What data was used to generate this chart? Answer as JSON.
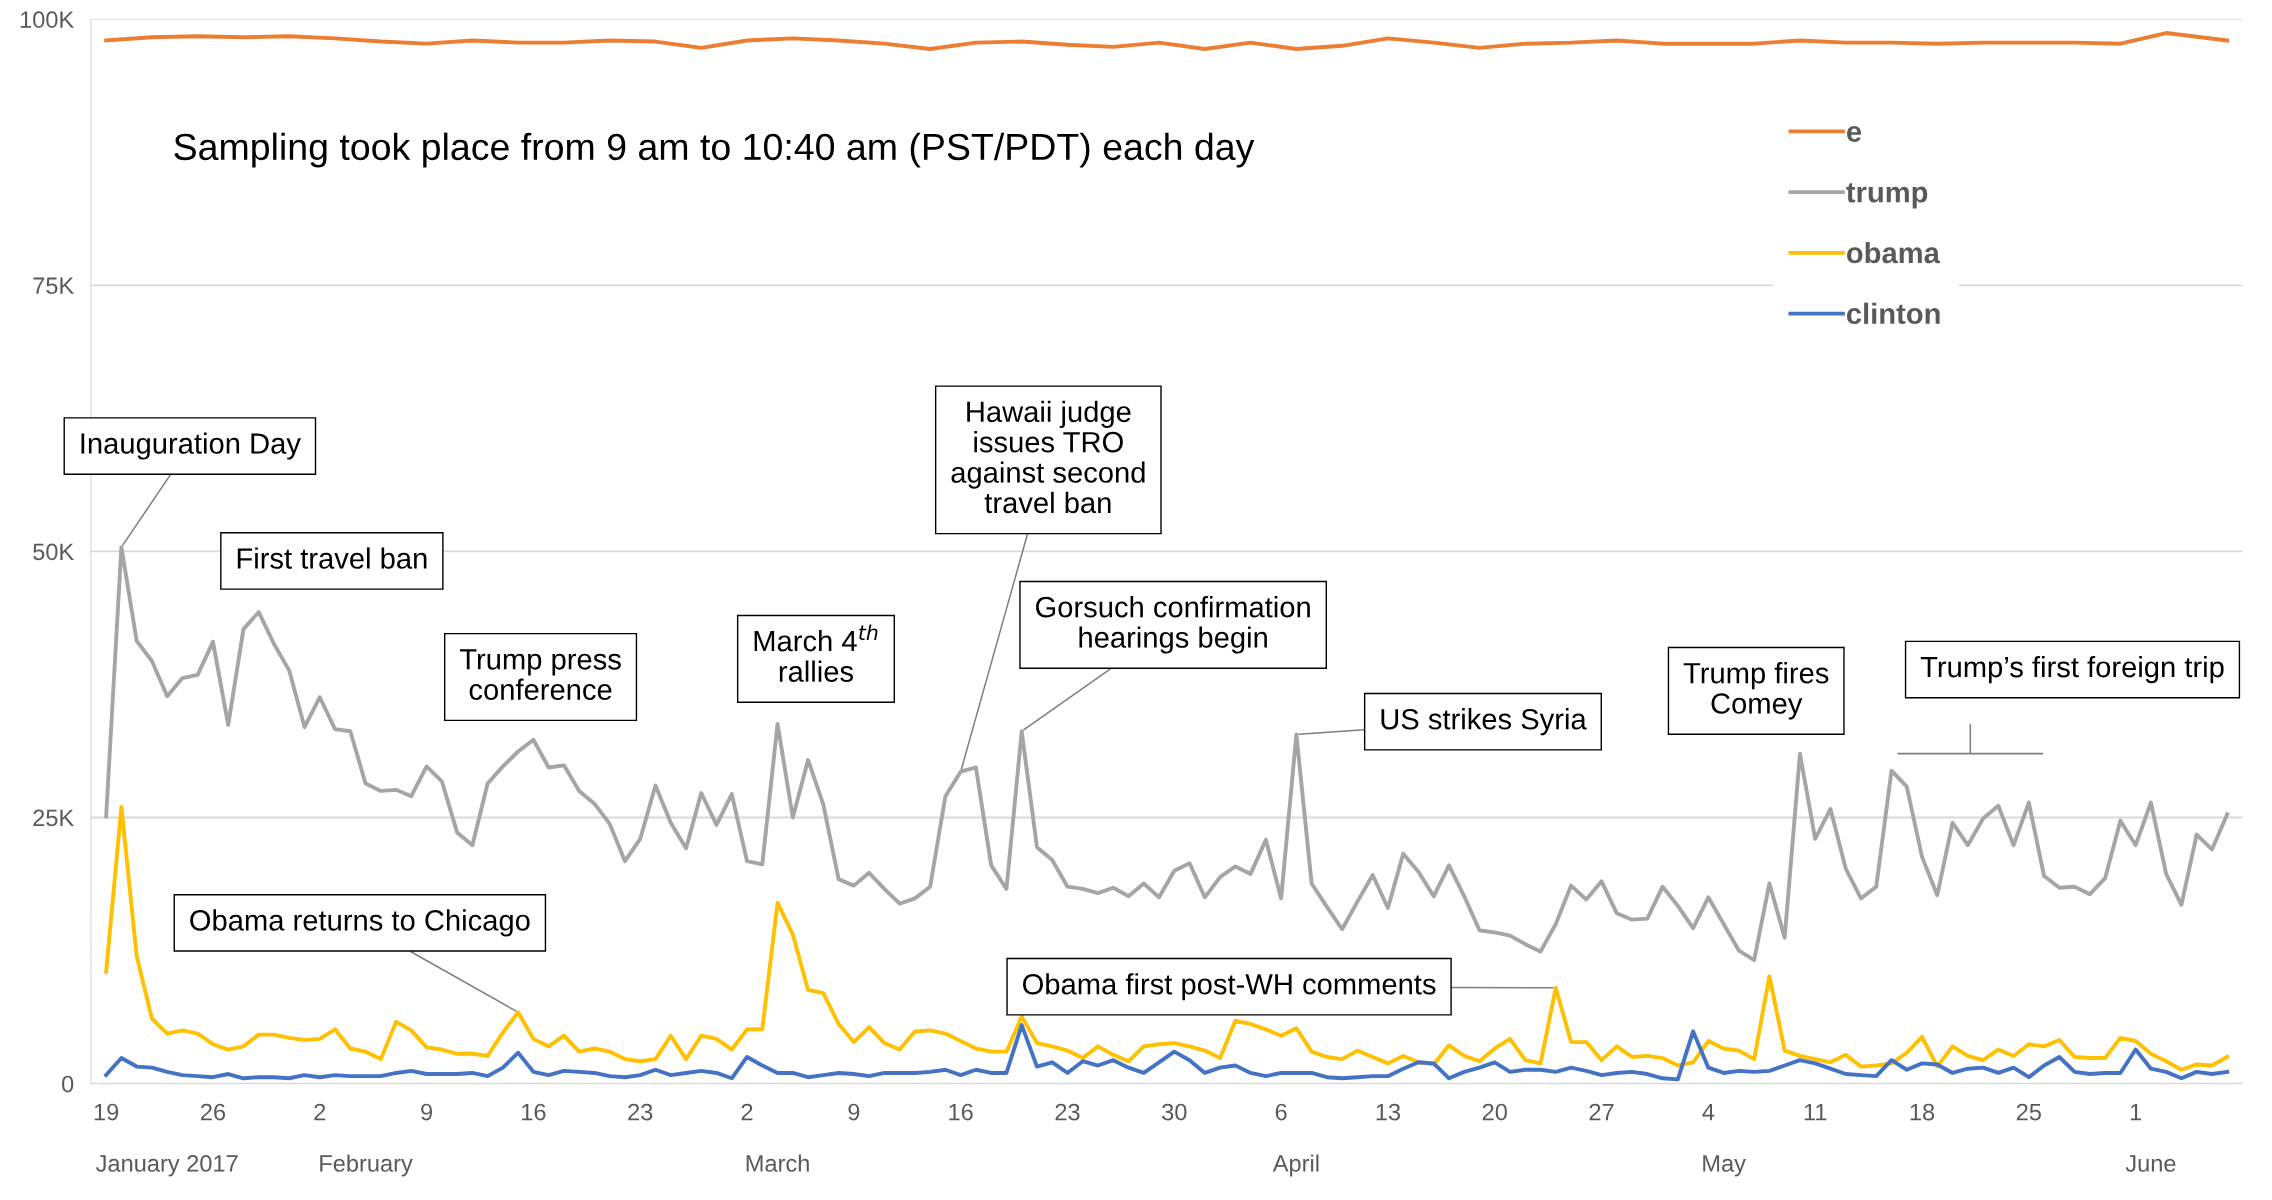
{
  "chart_data": {
    "type": "line",
    "title": "Sampling took place from 9 am to 10:40 am (PST/PDT) each day",
    "x": [
      "2017-01-19",
      "2017-01-20",
      "2017-01-21",
      "2017-01-22",
      "2017-01-23",
      "2017-01-24",
      "2017-01-25",
      "2017-01-26",
      "2017-01-27",
      "2017-01-28",
      "2017-01-29",
      "2017-01-30",
      "2017-01-31",
      "2017-02-01",
      "2017-02-02",
      "2017-02-03",
      "2017-02-04",
      "2017-02-05",
      "2017-02-06",
      "2017-02-07",
      "2017-02-08",
      "2017-02-09",
      "2017-02-10",
      "2017-02-11",
      "2017-02-12",
      "2017-02-13",
      "2017-02-14",
      "2017-02-15",
      "2017-02-16",
      "2017-02-17",
      "2017-02-18",
      "2017-02-19",
      "2017-02-20",
      "2017-02-21",
      "2017-02-22",
      "2017-02-23",
      "2017-02-24",
      "2017-02-25",
      "2017-02-26",
      "2017-02-27",
      "2017-02-28",
      "2017-03-01",
      "2017-03-02",
      "2017-03-03",
      "2017-03-04",
      "2017-03-05",
      "2017-03-06",
      "2017-03-07",
      "2017-03-08",
      "2017-03-09",
      "2017-03-10",
      "2017-03-11",
      "2017-03-12",
      "2017-03-13",
      "2017-03-14",
      "2017-03-15",
      "2017-03-16",
      "2017-03-17",
      "2017-03-18",
      "2017-03-19",
      "2017-03-20",
      "2017-03-21",
      "2017-03-22",
      "2017-03-23",
      "2017-03-24",
      "2017-03-25",
      "2017-03-26",
      "2017-03-27",
      "2017-03-28",
      "2017-03-29",
      "2017-03-30",
      "2017-03-31",
      "2017-04-01",
      "2017-04-02",
      "2017-04-03",
      "2017-04-04",
      "2017-04-05",
      "2017-04-06",
      "2017-04-07",
      "2017-04-08",
      "2017-04-09",
      "2017-04-10",
      "2017-04-11",
      "2017-04-12",
      "2017-04-13",
      "2017-04-14",
      "2017-04-15",
      "2017-04-16",
      "2017-04-17",
      "2017-04-18",
      "2017-04-19",
      "2017-04-20",
      "2017-04-21",
      "2017-04-22",
      "2017-04-23",
      "2017-04-24",
      "2017-04-25",
      "2017-04-26",
      "2017-04-27",
      "2017-04-28",
      "2017-04-29",
      "2017-04-30",
      "2017-05-01",
      "2017-05-02",
      "2017-05-03",
      "2017-05-04",
      "2017-05-05",
      "2017-05-06",
      "2017-05-07",
      "2017-05-08",
      "2017-05-09",
      "2017-05-10",
      "2017-05-11",
      "2017-05-12",
      "2017-05-13",
      "2017-05-14",
      "2017-05-15",
      "2017-05-16",
      "2017-05-17",
      "2017-05-18",
      "2017-05-19",
      "2017-05-20",
      "2017-05-21",
      "2017-05-22",
      "2017-05-23",
      "2017-05-24",
      "2017-05-25",
      "2017-05-26",
      "2017-05-27",
      "2017-05-28",
      "2017-05-29",
      "2017-05-30",
      "2017-05-31",
      "2017-06-01",
      "2017-06-02",
      "2017-06-03",
      "2017-06-04",
      "2017-06-05",
      "2017-06-06",
      "2017-06-07"
    ],
    "series": [
      {
        "name": "e",
        "color": "#ed7d31",
        "x": [
          "2017-01-19",
          "2017-01-22",
          "2017-01-25",
          "2017-01-28",
          "2017-01-31",
          "2017-02-03",
          "2017-02-06",
          "2017-02-09",
          "2017-02-12",
          "2017-02-15",
          "2017-02-18",
          "2017-02-21",
          "2017-02-24",
          "2017-02-27",
          "2017-03-02",
          "2017-03-05",
          "2017-03-08",
          "2017-03-11",
          "2017-03-14",
          "2017-03-17",
          "2017-03-20",
          "2017-03-23",
          "2017-03-26",
          "2017-03-29",
          "2017-04-01",
          "2017-04-04",
          "2017-04-07",
          "2017-04-10",
          "2017-04-13",
          "2017-04-16",
          "2017-04-19",
          "2017-04-22",
          "2017-04-25",
          "2017-04-28",
          "2017-05-01",
          "2017-05-04",
          "2017-05-07",
          "2017-05-10",
          "2017-05-13",
          "2017-05-16",
          "2017-05-19",
          "2017-05-22",
          "2017-05-25",
          "2017-05-28",
          "2017-05-31",
          "2017-06-03",
          "2017-06-07"
        ],
        "values": [
          98.0,
          98.3,
          98.4,
          98.3,
          98.4,
          98.2,
          97.9,
          97.7,
          98.0,
          97.8,
          97.8,
          98.0,
          97.9,
          97.3,
          98.0,
          98.2,
          98.0,
          97.7,
          97.2,
          97.8,
          97.9,
          97.6,
          97.4,
          97.8,
          97.2,
          97.8,
          97.2,
          97.5,
          98.2,
          97.8,
          97.3,
          97.7,
          97.8,
          98.0,
          97.7,
          97.7,
          97.7,
          98.0,
          97.8,
          97.8,
          97.7,
          97.8,
          97.8,
          97.8,
          97.7,
          98.7,
          98.0
        ]
      },
      {
        "name": "trump",
        "color": "#a5a5a5",
        "values": [
          25.1,
          50.4,
          41.6,
          39.7,
          36.4,
          38.1,
          38.4,
          41.5,
          33.7,
          42.7,
          44.3,
          41.3,
          38.8,
          33.5,
          36.3,
          33.3,
          33.1,
          28.2,
          27.5,
          27.6,
          27.0,
          29.8,
          28.4,
          23.6,
          22.4,
          28.2,
          29.8,
          31.2,
          32.3,
          29.7,
          29.9,
          27.5,
          26.3,
          24.4,
          20.9,
          23.0,
          28.0,
          24.5,
          22.1,
          27.3,
          24.3,
          27.2,
          20.9,
          20.6,
          33.8,
          25.0,
          30.4,
          26.2,
          19.2,
          18.6,
          19.8,
          18.3,
          16.9,
          17.4,
          18.5,
          27.0,
          29.3,
          29.7,
          20.5,
          18.3,
          33.1,
          22.2,
          21.0,
          18.5,
          18.3,
          17.9,
          18.4,
          17.6,
          18.8,
          17.5,
          20.0,
          20.7,
          17.5,
          19.4,
          20.4,
          19.7,
          22.9,
          17.4,
          32.8,
          18.8,
          16.6,
          14.5,
          17.1,
          19.6,
          16.5,
          21.6,
          19.9,
          17.6,
          20.5,
          17.6,
          14.4,
          14.2,
          13.9,
          13.1,
          12.4,
          15.0,
          18.6,
          17.3,
          19.0,
          16.0,
          15.4,
          15.5,
          18.5,
          16.7,
          14.6,
          17.5,
          15.0,
          12.5,
          11.6,
          18.8,
          13.7,
          31.0,
          23.0,
          25.8,
          20.2,
          17.4,
          18.5,
          29.4,
          27.9,
          21.3,
          17.7,
          24.5,
          22.4,
          24.9,
          26.1,
          22.4,
          26.4,
          19.5,
          18.4,
          18.5,
          17.8,
          19.3,
          24.7,
          22.4,
          26.4,
          19.7,
          16.8,
          23.4,
          22.0,
          25.3
        ]
      },
      {
        "name": "obama",
        "color": "#ffc000",
        "values": [
          10.5,
          26.0,
          12.0,
          6.1,
          4.7,
          5.0,
          4.7,
          3.7,
          3.2,
          3.5,
          4.6,
          4.6,
          4.3,
          4.1,
          4.2,
          5.1,
          3.3,
          3.0,
          2.3,
          5.8,
          5.0,
          3.4,
          3.2,
          2.8,
          2.8,
          2.6,
          4.8,
          6.7,
          4.2,
          3.5,
          4.5,
          3.0,
          3.3,
          3.0,
          2.3,
          2.1,
          2.3,
          4.5,
          2.3,
          4.5,
          4.2,
          3.2,
          5.1,
          5.1,
          17.0,
          14.0,
          8.8,
          8.5,
          5.6,
          3.9,
          5.3,
          3.8,
          3.2,
          4.9,
          5.0,
          4.7,
          4.0,
          3.3,
          3.0,
          3.0,
          6.3,
          3.8,
          3.5,
          3.1,
          2.4,
          3.5,
          2.7,
          2.1,
          3.5,
          3.7,
          3.8,
          3.5,
          3.1,
          2.4,
          5.9,
          5.6,
          5.1,
          4.5,
          5.2,
          3.0,
          2.5,
          2.3,
          3.1,
          2.5,
          1.9,
          2.6,
          2.0,
          1.8,
          3.6,
          2.6,
          2.1,
          3.3,
          4.2,
          2.2,
          1.9,
          9.0,
          3.9,
          3.9,
          2.2,
          3.5,
          2.5,
          2.6,
          2.4,
          1.7,
          2.0,
          4.0,
          3.3,
          3.1,
          2.3,
          10.1,
          3.1,
          2.6,
          2.3,
          2.0,
          2.7,
          1.6,
          1.7,
          1.9,
          2.9,
          4.4,
          1.6,
          3.5,
          2.6,
          2.2,
          3.2,
          2.6,
          3.7,
          3.5,
          4.1,
          2.5,
          2.4,
          2.4,
          4.3,
          4.0,
          2.8,
          2.1,
          1.3,
          1.8,
          1.7,
          2.5
        ]
      },
      {
        "name": "clinton",
        "color": "#4472c4",
        "values": [
          0.8,
          2.4,
          1.6,
          1.5,
          1.1,
          0.8,
          0.7,
          0.6,
          0.9,
          0.5,
          0.6,
          0.6,
          0.5,
          0.8,
          0.6,
          0.8,
          0.7,
          0.7,
          0.7,
          1.0,
          1.2,
          0.9,
          0.9,
          0.9,
          1.0,
          0.7,
          1.5,
          2.9,
          1.1,
          0.8,
          1.2,
          1.1,
          1.0,
          0.7,
          0.6,
          0.8,
          1.3,
          0.8,
          1.0,
          1.2,
          1.0,
          0.5,
          2.5,
          1.7,
          1.0,
          1.0,
          0.6,
          0.8,
          1.0,
          0.9,
          0.7,
          1.0,
          1.0,
          1.0,
          1.1,
          1.3,
          0.8,
          1.3,
          1.0,
          1.0,
          5.5,
          1.6,
          2.0,
          1.0,
          2.1,
          1.7,
          2.2,
          1.5,
          1.0,
          2.0,
          3.0,
          2.2,
          1.0,
          1.5,
          1.7,
          1.0,
          0.7,
          1.0,
          1.0,
          1.0,
          0.6,
          0.5,
          0.6,
          0.7,
          0.7,
          1.4,
          2.0,
          1.9,
          0.5,
          1.1,
          1.5,
          2.0,
          1.1,
          1.3,
          1.3,
          1.1,
          1.5,
          1.2,
          0.8,
          1.0,
          1.1,
          0.9,
          0.5,
          0.4,
          4.9,
          1.5,
          1.0,
          1.2,
          1.1,
          1.2,
          1.7,
          2.2,
          1.9,
          1.4,
          0.9,
          0.8,
          0.7,
          2.2,
          1.3,
          1.9,
          1.8,
          1.0,
          1.4,
          1.5,
          1.0,
          1.5,
          0.6,
          1.7,
          2.5,
          1.1,
          0.9,
          1.0,
          1.0,
          3.2,
          1.4,
          1.1,
          0.5,
          1.1,
          0.9,
          1.1
        ]
      }
    ],
    "xlim": [
      "2017-01-18",
      "2017-06-08"
    ],
    "xticks": [
      {
        "value": "2017-01-19",
        "label": "19"
      },
      {
        "value": "2017-01-26",
        "label": "26"
      },
      {
        "value": "2017-02-02",
        "label": "2"
      },
      {
        "value": "2017-02-09",
        "label": "9"
      },
      {
        "value": "2017-02-16",
        "label": "16"
      },
      {
        "value": "2017-02-23",
        "label": "23"
      },
      {
        "value": "2017-03-02",
        "label": "2"
      },
      {
        "value": "2017-03-09",
        "label": "9"
      },
      {
        "value": "2017-03-16",
        "label": "16"
      },
      {
        "value": "2017-03-23",
        "label": "23"
      },
      {
        "value": "2017-03-30",
        "label": "30"
      },
      {
        "value": "2017-04-06",
        "label": "6"
      },
      {
        "value": "2017-04-13",
        "label": "13"
      },
      {
        "value": "2017-04-20",
        "label": "20"
      },
      {
        "value": "2017-04-27",
        "label": "27"
      },
      {
        "value": "2017-05-04",
        "label": "4"
      },
      {
        "value": "2017-05-11",
        "label": "11"
      },
      {
        "value": "2017-05-18",
        "label": "18"
      },
      {
        "value": "2017-05-25",
        "label": "25"
      },
      {
        "value": "2017-06-01",
        "label": "1"
      }
    ],
    "x2ticks": [
      {
        "value": "2017-01-23",
        "label": "January 2017"
      },
      {
        "value": "2017-02-05",
        "label": "February"
      },
      {
        "value": "2017-03-04",
        "label": "March"
      },
      {
        "value": "2017-04-07",
        "label": "April"
      },
      {
        "value": "2017-05-05",
        "label": "May"
      },
      {
        "value": "2017-06-02",
        "label": "June"
      }
    ],
    "x2lim": [
      "2017-01-18",
      "2017-06-08"
    ],
    "ylim": [
      0,
      100
    ],
    "yticks": [
      0,
      {
        "value": 25,
        "label": "25K"
      },
      {
        "value": 50,
        "label": "50K"
      },
      {
        "value": 75,
        "label": "75K"
      },
      {
        "value": 100,
        "label": "100K"
      }
    ],
    "grid": "y",
    "legend": "top right",
    "annotations": [
      {
        "text": "Inauguration Day",
        "x": "2017-01-20",
        "y": 50.4
      },
      {
        "text": "First travel ban",
        "x": "2017-01-29",
        "y": 44.3
      },
      {
        "text": "Trump press\nconference",
        "x": "2017-02-16",
        "y": 32.3
      },
      {
        "text": "March 4$^{th}$\nrallies",
        "x": "2017-03-04",
        "y": 33.8
      },
      {
        "text": "Hawaii judge\nissues TRO\nagainst second\ntravel ban",
        "x": "2017-03-16",
        "y": 29.3
      },
      {
        "text": "Gorsuch confirmation\nhearings begin",
        "x": "2017-03-20",
        "y": 33.1
      },
      {
        "text": "US strikes Syria",
        "x": "2017-04-07",
        "y": 32.8
      },
      {
        "text": "Trump fires\nComey",
        "x": "2017-05-10",
        "y": 31.0
      },
      "Trump’s first foreign trip",
      {
        "text": "Obama returns to Chicago",
        "x": "2017-02-15",
        "y": 6.7
      },
      {
        "text": "Obama first post-WH comments",
        "x": "2017-04-24",
        "y": 9.0
      }
    ]
  }
}
